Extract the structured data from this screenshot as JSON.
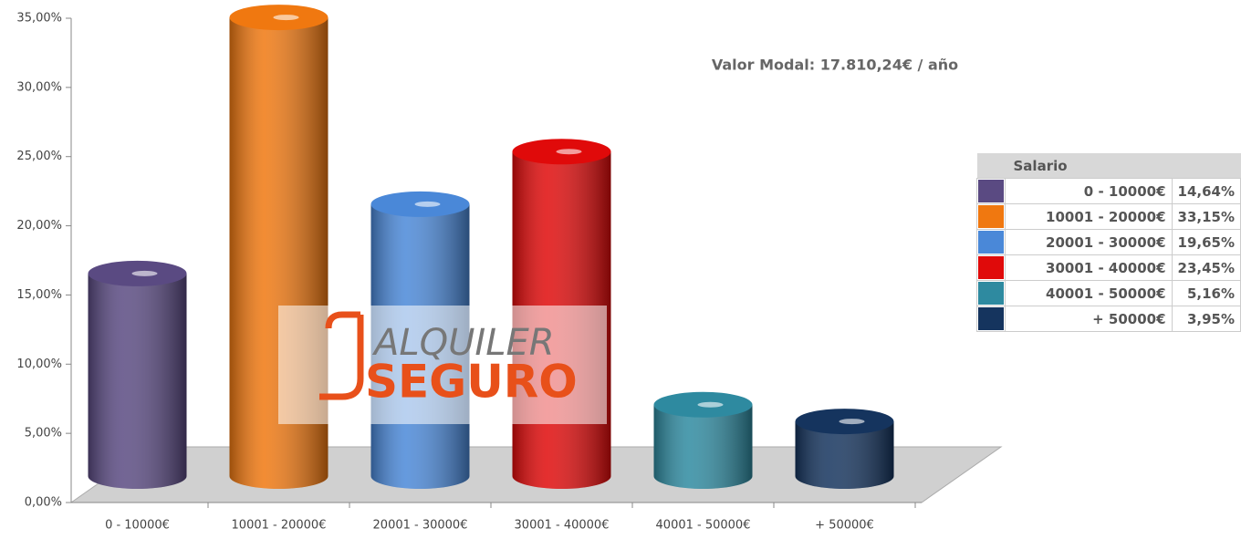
{
  "chart_data": {
    "type": "bar",
    "annotation": "Valor Modal: 17.810,24€ / año",
    "legend_title": "Salario",
    "watermark": [
      "ALQUILER",
      "SEGURO"
    ],
    "categories": [
      "0 - 10000€",
      "10001 - 20000€",
      "20001 - 30000€",
      "30001 - 40000€",
      "40001 - 50000€",
      "+ 50000€"
    ],
    "values": [
      14.64,
      33.15,
      19.65,
      23.45,
      5.16,
      3.95
    ],
    "value_labels": [
      "14,64%",
      "33,15%",
      "19,65%",
      "23,45%",
      "5,16%",
      "3,95%"
    ],
    "colors": [
      "#5a4a82",
      "#f07810",
      "#4a88d8",
      "#e00a0a",
      "#2e8aa0",
      "#15345e"
    ],
    "ylim": [
      0,
      35
    ],
    "yticks": [
      {
        "value": 0,
        "label": "0,00%"
      },
      {
        "value": 5,
        "label": "5,00%"
      },
      {
        "value": 10,
        "label": "10,00%"
      },
      {
        "value": 15,
        "label": "15,00%"
      },
      {
        "value": 20,
        "label": "20,00%"
      },
      {
        "value": 25,
        "label": "25,00%"
      },
      {
        "value": 30,
        "label": "30,00%"
      },
      {
        "value": 35,
        "label": "35,00%"
      }
    ]
  }
}
